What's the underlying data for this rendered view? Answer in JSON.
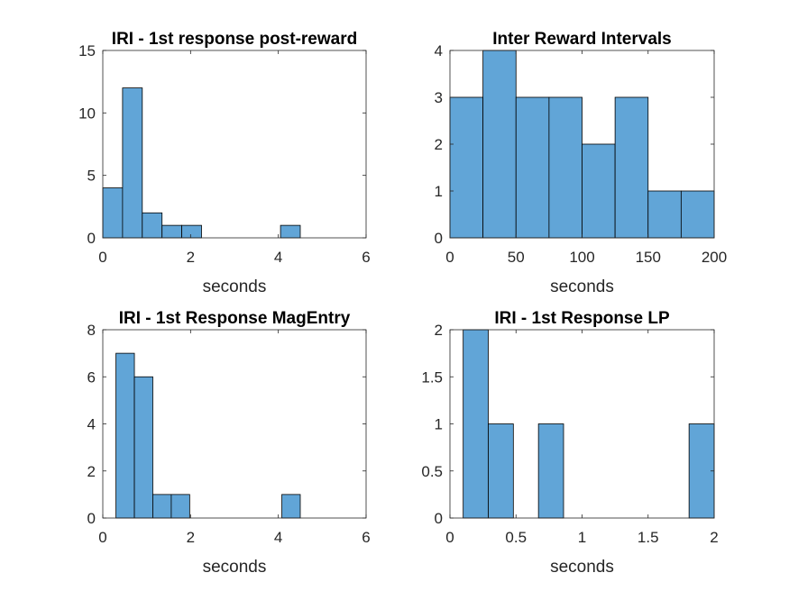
{
  "bar_color": "#61a5d7",
  "edge_color": "#000000",
  "chart_data": [
    {
      "type": "bar",
      "title": "IRI - 1st response post-reward",
      "xlabel": "seconds",
      "ylabel": "",
      "xlim": [
        0,
        6
      ],
      "ylim": [
        0,
        15
      ],
      "xticks": [
        "0",
        "2",
        "4",
        "6"
      ],
      "yticks": [
        "0",
        "5",
        "10",
        "15"
      ],
      "bins": [
        {
          "x0": 0.0,
          "x1": 0.45,
          "value": 4
        },
        {
          "x0": 0.45,
          "x1": 0.9,
          "value": 12
        },
        {
          "x0": 0.9,
          "x1": 1.35,
          "value": 2
        },
        {
          "x0": 1.35,
          "x1": 1.8,
          "value": 1
        },
        {
          "x0": 1.8,
          "x1": 2.25,
          "value": 1
        },
        {
          "x0": 4.05,
          "x1": 4.5,
          "value": 1
        }
      ]
    },
    {
      "type": "bar",
      "title": "Inter Reward Intervals",
      "xlabel": "seconds",
      "ylabel": "",
      "xlim": [
        0,
        200
      ],
      "ylim": [
        0,
        4
      ],
      "xticks": [
        "0",
        "50",
        "100",
        "150",
        "200"
      ],
      "yticks": [
        "0",
        "1",
        "2",
        "3",
        "4"
      ],
      "bins": [
        {
          "x0": 0,
          "x1": 25,
          "value": 3
        },
        {
          "x0": 25,
          "x1": 50,
          "value": 4
        },
        {
          "x0": 50,
          "x1": 75,
          "value": 3
        },
        {
          "x0": 75,
          "x1": 100,
          "value": 3
        },
        {
          "x0": 100,
          "x1": 125,
          "value": 2
        },
        {
          "x0": 125,
          "x1": 150,
          "value": 3
        },
        {
          "x0": 150,
          "x1": 175,
          "value": 1
        },
        {
          "x0": 175,
          "x1": 200,
          "value": 1
        }
      ]
    },
    {
      "type": "bar",
      "title": "IRI - 1st Response MagEntry",
      "xlabel": "seconds",
      "ylabel": "",
      "xlim": [
        0,
        6
      ],
      "ylim": [
        0,
        8
      ],
      "xticks": [
        "0",
        "2",
        "4",
        "6"
      ],
      "yticks": [
        "0",
        "2",
        "4",
        "6",
        "8"
      ],
      "bins": [
        {
          "x0": 0.3,
          "x1": 0.72,
          "value": 7
        },
        {
          "x0": 0.72,
          "x1": 1.14,
          "value": 6
        },
        {
          "x0": 1.14,
          "x1": 1.56,
          "value": 1
        },
        {
          "x0": 1.56,
          "x1": 1.98,
          "value": 1
        },
        {
          "x0": 4.08,
          "x1": 4.5,
          "value": 1
        }
      ]
    },
    {
      "type": "bar",
      "title": "IRI - 1st Response LP",
      "xlabel": "seconds",
      "ylabel": "",
      "xlim": [
        0,
        2
      ],
      "ylim": [
        0,
        2
      ],
      "xticks": [
        "0",
        "0.5",
        "1",
        "1.5",
        "2"
      ],
      "yticks": [
        "0",
        "0.5",
        "1",
        "1.5",
        "2"
      ],
      "bins": [
        {
          "x0": 0.1,
          "x1": 0.29,
          "value": 2
        },
        {
          "x0": 0.29,
          "x1": 0.48,
          "value": 1
        },
        {
          "x0": 0.67,
          "x1": 0.86,
          "value": 1
        },
        {
          "x0": 1.81,
          "x1": 2.0,
          "value": 1
        }
      ]
    }
  ]
}
